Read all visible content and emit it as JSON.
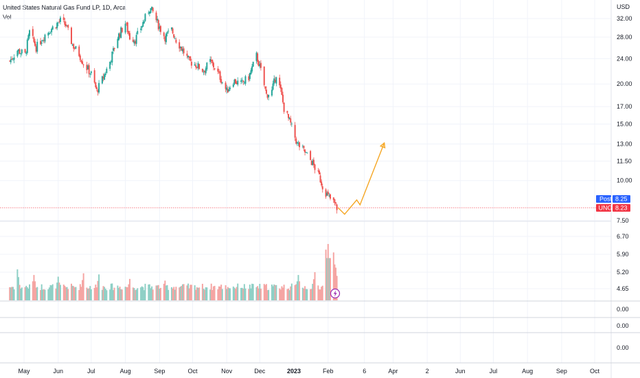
{
  "legend": {
    "title": "United States Natural Gas Fund LP, 1D, Arca",
    "volume_label": "Vol"
  },
  "colors": {
    "up": "#26a69a",
    "down": "#ef5350",
    "vol_up": "#8fd0c6",
    "vol_down": "#f5a5a3",
    "projection": "#f5a623",
    "post_badge": "#2962ff",
    "ung_badge": "#f23645",
    "grid": "#f0f3fa",
    "price_line": "#f23645",
    "alert_icon": "#9c27b0"
  },
  "icons": {
    "alert": "lightning-bolt-icon"
  },
  "chart_data": {
    "type": "candlestick",
    "symbol": "UNG",
    "currency_label": "USD",
    "scale": "log",
    "price_ticks": [
      "32.00",
      "28.00",
      "24.00",
      "20.00",
      "17.00",
      "15.00",
      "13.00",
      "11.50",
      "10.00",
      "7.50",
      "6.70",
      "5.90",
      "5.20",
      "4.65"
    ],
    "volume_axis_ticks": [
      "0.00",
      "0.00",
      "0.00"
    ],
    "time_ticks": [
      {
        "label": "May",
        "date": "2022-05-01"
      },
      {
        "label": "Jun",
        "date": "2022-06-01"
      },
      {
        "label": "Jul",
        "date": "2022-07-01"
      },
      {
        "label": "Aug",
        "date": "2022-08-01"
      },
      {
        "label": "Sep",
        "date": "2022-09-01"
      },
      {
        "label": "Oct",
        "date": "2022-10-01"
      },
      {
        "label": "Nov",
        "date": "2022-11-01"
      },
      {
        "label": "Dec",
        "date": "2022-12-01"
      },
      {
        "label": "2023",
        "date": "2023-01-01",
        "bold": true
      },
      {
        "label": "Feb",
        "date": "2023-02-01"
      },
      {
        "label": "6",
        "date": "2023-03-06"
      },
      {
        "label": "Apr",
        "date": "2023-04-01"
      },
      {
        "label": "2",
        "date": "2023-05-02"
      },
      {
        "label": "Jun",
        "date": "2023-06-01"
      },
      {
        "label": "Jul",
        "date": "2023-07-01"
      },
      {
        "label": "Aug",
        "date": "2023-08-01"
      },
      {
        "label": "Sep",
        "date": "2023-09-01"
      },
      {
        "label": "Oct",
        "date": "2023-10-01"
      }
    ],
    "close_path": [
      [
        "2022-04-18",
        23.6
      ],
      [
        "2022-04-25",
        25.5
      ],
      [
        "2022-05-02",
        24.7
      ],
      [
        "2022-05-06",
        29.0
      ],
      [
        "2022-05-12",
        26.0
      ],
      [
        "2022-05-20",
        28.5
      ],
      [
        "2022-05-27",
        30.0
      ],
      [
        "2022-06-03",
        31.5
      ],
      [
        "2022-06-08",
        30.5
      ],
      [
        "2022-06-14",
        26.5
      ],
      [
        "2022-06-20",
        24.8
      ],
      [
        "2022-06-24",
        23.2
      ],
      [
        "2022-07-01",
        21.5
      ],
      [
        "2022-07-06",
        19.0
      ],
      [
        "2022-07-12",
        21.0
      ],
      [
        "2022-07-18",
        23.5
      ],
      [
        "2022-07-25",
        28.0
      ],
      [
        "2022-08-01",
        31.0
      ],
      [
        "2022-08-05",
        28.0
      ],
      [
        "2022-08-10",
        27.5
      ],
      [
        "2022-08-16",
        30.5
      ],
      [
        "2022-08-23",
        34.5
      ],
      [
        "2022-08-26",
        33.5
      ],
      [
        "2022-08-31",
        30.5
      ],
      [
        "2022-09-06",
        28.0
      ],
      [
        "2022-09-12",
        29.5
      ],
      [
        "2022-09-16",
        27.5
      ],
      [
        "2022-09-22",
        25.5
      ],
      [
        "2022-09-28",
        23.5
      ],
      [
        "2022-10-04",
        23.0
      ],
      [
        "2022-10-11",
        22.0
      ],
      [
        "2022-10-17",
        23.5
      ],
      [
        "2022-10-21",
        22.5
      ],
      [
        "2022-10-26",
        21.0
      ],
      [
        "2022-11-01",
        19.0
      ],
      [
        "2022-11-07",
        20.5
      ],
      [
        "2022-11-14",
        20.0
      ],
      [
        "2022-11-21",
        21.0
      ],
      [
        "2022-11-28",
        24.5
      ],
      [
        "2022-12-02",
        22.0
      ],
      [
        "2022-12-07",
        18.5
      ],
      [
        "2022-12-12",
        19.0
      ],
      [
        "2022-12-16",
        21.5
      ],
      [
        "2022-12-20",
        19.0
      ],
      [
        "2022-12-23",
        16.8
      ],
      [
        "2022-12-29",
        15.0
      ],
      [
        "2023-01-04",
        13.0
      ],
      [
        "2023-01-09",
        12.5
      ],
      [
        "2023-01-13",
        12.0
      ],
      [
        "2023-01-18",
        11.3
      ],
      [
        "2023-01-24",
        10.3
      ],
      [
        "2023-01-27",
        9.6
      ],
      [
        "2023-02-01",
        8.9
      ],
      [
        "2023-02-06",
        8.55
      ],
      [
        "2023-02-09",
        8.23
      ]
    ],
    "volume_spikes": [
      [
        "2022-04-25",
        0.55
      ],
      [
        "2022-05-10",
        0.45
      ],
      [
        "2022-06-01",
        0.42
      ],
      [
        "2022-06-24",
        0.48
      ],
      [
        "2022-07-08",
        0.46
      ],
      [
        "2022-08-05",
        0.38
      ],
      [
        "2022-09-06",
        0.35
      ],
      [
        "2022-10-03",
        0.25
      ],
      [
        "2022-11-14",
        0.22
      ],
      [
        "2022-12-12",
        0.28
      ],
      [
        "2023-01-05",
        0.45
      ],
      [
        "2023-01-20",
        0.5
      ],
      [
        "2023-01-30",
        0.9
      ],
      [
        "2023-02-01",
        1.0
      ],
      [
        "2023-02-03",
        0.75
      ],
      [
        "2023-02-06",
        0.85
      ],
      [
        "2023-02-08",
        0.58
      ]
    ],
    "projection_path": [
      [
        "2023-02-10",
        8.23
      ],
      [
        "2023-02-16",
        7.85
      ],
      [
        "2023-02-27",
        8.7
      ],
      [
        "2023-03-02",
        8.4
      ],
      [
        "2023-03-24",
        13.1
      ]
    ],
    "badges": [
      {
        "label": "Post",
        "value": "8.25"
      },
      {
        "label": "UNG",
        "value": "8.23"
      }
    ]
  }
}
